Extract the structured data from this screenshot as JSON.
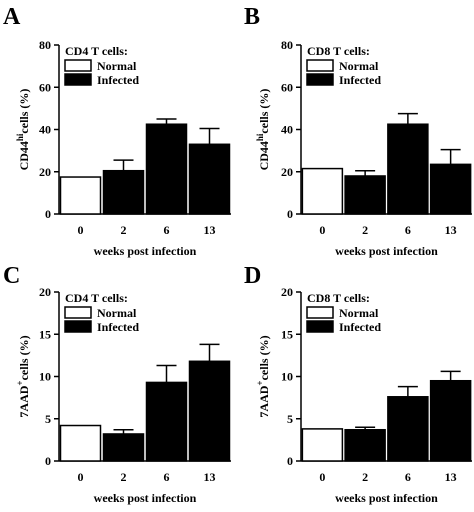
{
  "chart_data": [
    {
      "type": "bar",
      "panel": "A",
      "legend_title": "CD4 T cells:",
      "legend": [
        "Normal",
        "Infected"
      ],
      "categories": [
        "0",
        "2",
        "6",
        "13"
      ],
      "values": [
        17.5,
        20.5,
        42.5,
        33
      ],
      "errors": [
        0,
        5,
        2.5,
        7.5
      ],
      "group": [
        "Normal",
        "Infected",
        "Infected",
        "Infected"
      ],
      "ylim": [
        0,
        80
      ],
      "yticks": [
        0,
        20,
        40,
        60,
        80
      ],
      "ylabel": "CD44",
      "ylabel_sup": "hi",
      "ylabel_suffix": "cells (%)",
      "xlabel": "weeks post infection",
      "colors": {
        "normal": "#ffffff",
        "infected": "#000000"
      }
    },
    {
      "type": "bar",
      "panel": "B",
      "legend_title": "CD8 T cells:",
      "legend": [
        "Normal",
        "Infected"
      ],
      "categories": [
        "0",
        "2",
        "6",
        "13"
      ],
      "values": [
        21.5,
        18,
        42.5,
        23.5
      ],
      "errors": [
        0,
        2.5,
        5,
        7
      ],
      "group": [
        "Normal",
        "Infected",
        "Infected",
        "Infected"
      ],
      "ylim": [
        0,
        80
      ],
      "yticks": [
        0,
        20,
        40,
        60,
        80
      ],
      "ylabel": "CD44",
      "ylabel_sup": "hi",
      "ylabel_suffix": "cells (%)",
      "xlabel": "weeks post infection",
      "colors": {
        "normal": "#ffffff",
        "infected": "#000000"
      }
    },
    {
      "type": "bar",
      "panel": "C",
      "legend_title": "CD4 T cells:",
      "legend": [
        "Normal",
        "Infected"
      ],
      "categories": [
        "0",
        "2",
        "6",
        "13"
      ],
      "values": [
        4.2,
        3.2,
        9.3,
        11.8
      ],
      "errors": [
        0,
        0.5,
        2,
        2
      ],
      "group": [
        "Normal",
        "Infected",
        "Infected",
        "Infected"
      ],
      "ylim": [
        0,
        20
      ],
      "yticks": [
        0,
        5,
        10,
        15,
        20
      ],
      "ylabel": "7AAD",
      "ylabel_sup": "+",
      "ylabel_suffix": "cells (%)",
      "xlabel": "weeks post infection",
      "colors": {
        "normal": "#ffffff",
        "infected": "#000000"
      }
    },
    {
      "type": "bar",
      "panel": "D",
      "legend_title": "CD8 T cells:",
      "legend": [
        "Normal",
        "Infected"
      ],
      "categories": [
        "0",
        "2",
        "6",
        "13"
      ],
      "values": [
        3.8,
        3.7,
        7.6,
        9.5
      ],
      "errors": [
        0,
        0.3,
        1.2,
        1.1
      ],
      "group": [
        "Normal",
        "Infected",
        "Infected",
        "Infected"
      ],
      "ylim": [
        0,
        20
      ],
      "yticks": [
        0,
        5,
        10,
        15,
        20
      ],
      "ylabel": "7AAD",
      "ylabel_sup": "+",
      "ylabel_suffix": "cells (%)",
      "xlabel": "weeks post infection",
      "colors": {
        "normal": "#ffffff",
        "infected": "#000000"
      }
    }
  ]
}
